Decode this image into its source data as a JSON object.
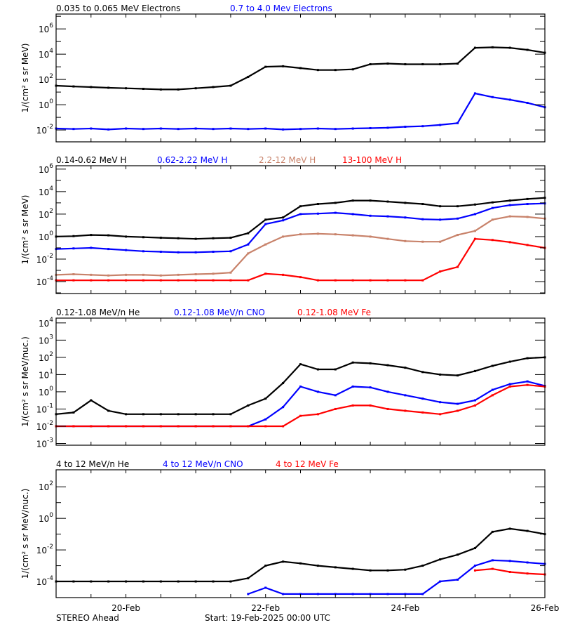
{
  "footer": {
    "spacecraft": "STEREO Ahead",
    "start": "Start: 19-Feb-2025 00:00 UTC"
  },
  "chart_data": {
    "type": "scatter",
    "x_axis": {
      "xlim": [
        "2025-02-19T00:00",
        "2025-02-26T00:00"
      ],
      "ticks": [
        {
          "at": "2025-02-20T00:00",
          "label": "20-Feb"
        },
        {
          "at": "2025-02-22T00:00",
          "label": "22-Feb"
        },
        {
          "at": "2025-02-24T00:00",
          "label": "24-Feb"
        },
        {
          "at": "2025-02-26T00:00",
          "label": "26-Feb"
        }
      ]
    },
    "x": [
      "2025-02-19T00:00",
      "2025-02-19T06:00",
      "2025-02-19T12:00",
      "2025-02-19T18:00",
      "2025-02-20T00:00",
      "2025-02-20T06:00",
      "2025-02-20T12:00",
      "2025-02-20T18:00",
      "2025-02-21T00:00",
      "2025-02-21T06:00",
      "2025-02-21T12:00",
      "2025-02-21T18:00",
      "2025-02-22T00:00",
      "2025-02-22T06:00",
      "2025-02-22T12:00",
      "2025-02-22T18:00",
      "2025-02-23T00:00",
      "2025-02-23T06:00",
      "2025-02-23T12:00",
      "2025-02-23T18:00",
      "2025-02-24T00:00",
      "2025-02-24T06:00",
      "2025-02-24T12:00",
      "2025-02-24T18:00",
      "2025-02-25T00:00",
      "2025-02-25T06:00",
      "2025-02-25T12:00",
      "2025-02-25T18:00",
      "2025-02-26T00:00"
    ],
    "panels": [
      {
        "ylabel": "1/(cm² s sr MeV)",
        "yscale": "log",
        "ylim": [
          0.00115,
          15000000.0
        ],
        "major_ticks": [
          1000000.0,
          10000.0,
          100.0,
          1.0,
          0.01
        ],
        "minor_ticks": [
          10000000.0,
          100000.0,
          1000.0,
          10.0,
          0.1
        ],
        "series": [
          {
            "name": "0.035 to 0.065 MeV Electrons",
            "color": "#000000",
            "values": [
              32,
              28,
              25,
              22,
              20,
              18,
              16,
              16,
              20,
              25,
              32,
              160,
              1000,
              1100,
              790,
              560,
              560,
              630,
              1600,
              1800,
              1600,
              1600,
              1600,
              1800,
              32000,
              35000,
              32000,
              22000,
              13000
            ]
          },
          {
            "name": "0.7 to 4.0 Mev Electrons",
            "color": "#0000ff",
            "values": [
              0.013,
              0.012,
              0.013,
              0.011,
              0.013,
              0.012,
              0.013,
              0.012,
              0.013,
              0.012,
              0.013,
              0.012,
              0.013,
              0.011,
              0.012,
              0.013,
              0.012,
              0.013,
              0.014,
              0.015,
              0.018,
              0.02,
              0.025,
              0.035,
              7.9,
              4.0,
              2.5,
              1.4,
              0.63
            ]
          }
        ]
      },
      {
        "ylabel": "1/(cm² s sr MeV)",
        "yscale": "log",
        "ylim": [
          8.7e-06,
          2000000.0
        ],
        "major_ticks": [
          1000000.0,
          10000.0,
          100.0,
          1.0,
          0.01,
          0.0001
        ],
        "minor_ticks": [
          100000.0,
          1000.0,
          10.0,
          0.1,
          0.001,
          1e-05
        ],
        "series": [
          {
            "name": "0.14-0.62 MeV H",
            "color": "#000000",
            "values": [
              1.0,
              1.1,
              1.4,
              1.3,
              1.0,
              0.89,
              0.79,
              0.71,
              0.63,
              0.71,
              0.79,
              2.0,
              32,
              50,
              500,
              790,
              1000,
              1600,
              1600,
              1300,
              1000,
              790,
              500,
              500,
              710,
              1100,
              1600,
              2200,
              2800
            ]
          },
          {
            "name": "0.62-2.22 MeV H",
            "color": "#0000ff",
            "values": [
              0.079,
              0.089,
              0.1,
              0.079,
              0.063,
              0.05,
              0.045,
              0.04,
              0.04,
              0.045,
              0.05,
              0.2,
              13,
              28,
              100,
              110,
              130,
              100,
              71,
              63,
              50,
              35,
              32,
              40,
              100,
              350,
              630,
              790,
              890
            ]
          },
          {
            "name": "2.2-12 MeV H",
            "color": "#c8826a",
            "values": [
              0.0004,
              0.00045,
              0.0004,
              0.00035,
              0.0004,
              0.0004,
              0.00035,
              0.0004,
              0.00045,
              0.0005,
              0.00063,
              0.032,
              0.2,
              1.0,
              1.6,
              1.8,
              1.6,
              1.3,
              1.0,
              0.63,
              0.4,
              0.35,
              0.35,
              1.4,
              3.2,
              32,
              63,
              56,
              40
            ]
          },
          {
            "name": "13-100 MeV H",
            "color": "#ff0000",
            "values": [
              0.00013,
              0.00013,
              0.00013,
              0.00013,
              0.00013,
              0.00013,
              0.00013,
              0.00013,
              0.00013,
              0.00013,
              0.00013,
              0.00013,
              0.0005,
              0.0004,
              0.00025,
              0.00013,
              0.00013,
              0.00013,
              0.00013,
              0.00013,
              0.00013,
              0.00013,
              0.00079,
              0.002,
              0.63,
              0.5,
              0.32,
              0.18,
              0.1
            ]
          }
        ]
      },
      {
        "ylabel": "1/(cm² s sr MeV/nuc.)",
        "yscale": "log",
        "ylim": [
          0.00079,
          19000.0
        ],
        "major_ticks": [
          10000.0,
          1000.0,
          100.0,
          10.0,
          1.0,
          0.1,
          0.01,
          0.001
        ],
        "minor_ticks": [],
        "series": [
          {
            "name": "0.12-1.08 MeV/n He",
            "color": "#000000",
            "values": [
              0.05,
              0.063,
              0.32,
              0.079,
              0.05,
              0.05,
              0.05,
              0.05,
              0.05,
              0.05,
              0.05,
              0.16,
              0.4,
              3.2,
              40,
              20,
              20,
              50,
              45,
              35,
              25,
              14,
              10,
              8.9,
              16,
              32,
              56,
              89,
              100
            ]
          },
          {
            "name": "0.12-1.08 MeV/n CNO",
            "color": "#0000ff",
            "values": [
              0.01,
              0.01,
              0.01,
              0.01,
              0.01,
              0.01,
              0.01,
              0.01,
              0.01,
              0.01,
              0.01,
              0.01,
              0.025,
              0.13,
              2.0,
              1.0,
              0.63,
              2.0,
              1.8,
              1.0,
              0.63,
              0.4,
              0.25,
              0.2,
              0.32,
              1.3,
              2.8,
              4.0,
              2.2
            ]
          },
          {
            "name": "0.12-1.08 MeV Fe",
            "color": "#ff0000",
            "values": [
              0.01,
              0.01,
              0.01,
              0.01,
              0.01,
              0.01,
              0.01,
              0.01,
              0.01,
              0.01,
              0.01,
              0.01,
              0.01,
              0.01,
              0.04,
              0.05,
              0.1,
              0.16,
              0.16,
              0.1,
              0.079,
              0.063,
              0.05,
              0.079,
              0.16,
              0.63,
              2.0,
              2.5,
              2.0
            ]
          }
        ]
      },
      {
        "ylabel": "1/(cm² s sr MeV/nuc.)",
        "yscale": "log",
        "ylim": [
          9.5e-06,
          1200.0
        ],
        "major_ticks": [
          100.0,
          1.0,
          0.01,
          0.0001
        ],
        "minor_ticks": [
          10.0,
          0.1,
          0.001
        ],
        "series": [
          {
            "name": "4 to 12 MeV/n He",
            "color": "#000000",
            "values": [
              0.0001,
              0.0001,
              0.0001,
              0.0001,
              0.0001,
              0.0001,
              0.0001,
              0.0001,
              0.0001,
              0.0001,
              0.0001,
              0.00016,
              0.001,
              0.0018,
              0.0014,
              0.001,
              0.00079,
              0.00063,
              0.0005,
              0.0005,
              0.00056,
              0.001,
              0.0025,
              0.005,
              0.013,
              0.14,
              0.22,
              0.16,
              0.1
            ]
          },
          {
            "name": "4 to 12 MeV/n CNO",
            "color": "#0000ff",
            "values": [
              null,
              null,
              null,
              null,
              null,
              null,
              null,
              null,
              null,
              null,
              null,
              1.6e-05,
              4e-05,
              1.6e-05,
              1.6e-05,
              1.6e-05,
              1.6e-05,
              1.6e-05,
              1.6e-05,
              1.6e-05,
              1.6e-05,
              1.6e-05,
              0.0001,
              0.00013,
              0.001,
              0.0022,
              0.002,
              0.0016,
              0.0013
            ]
          },
          {
            "name": "4 to 12 MeV Fe",
            "color": "#ff0000",
            "values": [
              null,
              null,
              null,
              null,
              null,
              null,
              null,
              null,
              null,
              null,
              null,
              null,
              null,
              null,
              null,
              null,
              null,
              null,
              null,
              null,
              null,
              null,
              null,
              null,
              0.0005,
              0.00063,
              0.0004,
              0.00032,
              0.00028
            ]
          }
        ]
      }
    ]
  }
}
